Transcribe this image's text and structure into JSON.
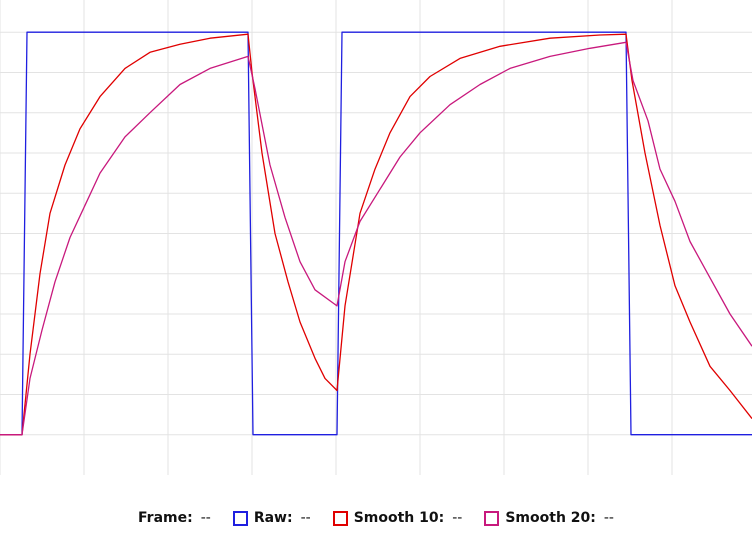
{
  "chart_data": {
    "type": "line",
    "xlim": [
      0,
      752
    ],
    "ylim": [
      -10,
      108
    ],
    "x_grid_step": 84,
    "y_grid_step": 10,
    "grid": true,
    "legend_placement": "bottom-center",
    "series": [
      {
        "name": "Raw",
        "color": "#1f1fe0",
        "points": [
          [
            0,
            0
          ],
          [
            22,
            0
          ],
          [
            27,
            100
          ],
          [
            248,
            100
          ],
          [
            253,
            0
          ],
          [
            337,
            0
          ],
          [
            342,
            100
          ],
          [
            626,
            100
          ],
          [
            631,
            0
          ],
          [
            752,
            0
          ]
        ]
      },
      {
        "name": "Smooth 10",
        "color": "#e00000",
        "points": [
          [
            0,
            0
          ],
          [
            22,
            0
          ],
          [
            30,
            20
          ],
          [
            40,
            40
          ],
          [
            50,
            55
          ],
          [
            65,
            67
          ],
          [
            80,
            76
          ],
          [
            100,
            84
          ],
          [
            125,
            91
          ],
          [
            150,
            95
          ],
          [
            180,
            97
          ],
          [
            210,
            98.5
          ],
          [
            248,
            99.5
          ],
          [
            252,
            90
          ],
          [
            262,
            70
          ],
          [
            275,
            50
          ],
          [
            288,
            38
          ],
          [
            300,
            28
          ],
          [
            315,
            19
          ],
          [
            325,
            14
          ],
          [
            337,
            11
          ],
          [
            345,
            32
          ],
          [
            360,
            55
          ],
          [
            375,
            66
          ],
          [
            390,
            75
          ],
          [
            410,
            84
          ],
          [
            430,
            89
          ],
          [
            460,
            93.5
          ],
          [
            500,
            96.5
          ],
          [
            550,
            98.5
          ],
          [
            600,
            99.3
          ],
          [
            626,
            99.5
          ],
          [
            632,
            88
          ],
          [
            645,
            70
          ],
          [
            660,
            52
          ],
          [
            675,
            37
          ],
          [
            690,
            28
          ],
          [
            710,
            17
          ],
          [
            730,
            11
          ],
          [
            752,
            4
          ]
        ]
      },
      {
        "name": "Smooth 20",
        "color": "#c8197d",
        "points": [
          [
            0,
            0
          ],
          [
            22,
            0
          ],
          [
            30,
            14
          ],
          [
            42,
            26
          ],
          [
            55,
            38
          ],
          [
            70,
            49
          ],
          [
            85,
            57
          ],
          [
            100,
            65
          ],
          [
            125,
            74
          ],
          [
            150,
            80
          ],
          [
            180,
            87
          ],
          [
            210,
            91
          ],
          [
            248,
            94
          ],
          [
            255,
            86
          ],
          [
            270,
            67
          ],
          [
            285,
            54
          ],
          [
            300,
            43
          ],
          [
            315,
            36
          ],
          [
            337,
            32
          ],
          [
            345,
            43
          ],
          [
            360,
            53
          ],
          [
            380,
            61
          ],
          [
            400,
            69
          ],
          [
            420,
            75
          ],
          [
            450,
            82
          ],
          [
            480,
            87
          ],
          [
            510,
            91
          ],
          [
            550,
            94
          ],
          [
            590,
            96
          ],
          [
            626,
            97.5
          ],
          [
            633,
            88
          ],
          [
            648,
            78
          ],
          [
            660,
            66
          ],
          [
            675,
            58
          ],
          [
            690,
            48
          ],
          [
            710,
            39
          ],
          [
            730,
            30
          ],
          [
            752,
            22
          ]
        ]
      }
    ]
  },
  "legend": {
    "frame_label": "Frame:",
    "frame_value": "--",
    "raw_label": "Raw:",
    "raw_value": "--",
    "smooth10_label": "Smooth 10:",
    "smooth10_value": "--",
    "smooth20_label": "Smooth 20:",
    "smooth20_value": "--"
  }
}
